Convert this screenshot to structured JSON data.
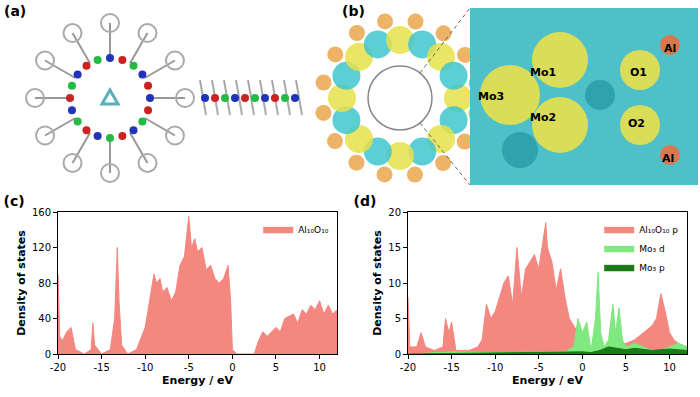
{
  "panels": [
    {
      "label": "(a)"
    },
    {
      "label": "(b)",
      "atom_labels": [
        "Mo1",
        "Mo2",
        "Mo3",
        "O1",
        "O2",
        "Al",
        "Al"
      ]
    }
  ],
  "chart_data": [
    {
      "type": "area",
      "title": "(c)",
      "x_label": "Energy / eV",
      "y_label": "Density of states",
      "xlim": [
        -20,
        12
      ],
      "xticks": [
        -20,
        -15,
        -10,
        -5,
        0,
        5,
        10
      ],
      "ylim": [
        0,
        160
      ],
      "yticks": [
        0,
        40,
        80,
        120,
        160
      ],
      "legend": "upper right",
      "series": [
        {
          "name": "Al₁₀O₁₀",
          "color": "#f4877f",
          "x": [
            -20,
            -19.8,
            -19.5,
            -19,
            -18.5,
            -18,
            -17,
            -16.2,
            -16,
            -15.8,
            -15,
            -14,
            -13.5,
            -13.2,
            -13,
            -12.7,
            -12,
            -11,
            -10,
            -9.5,
            -9,
            -8.7,
            -8.3,
            -8,
            -7.5,
            -7,
            -6.5,
            -6,
            -5.5,
            -5,
            -4.7,
            -4.3,
            -4,
            -3.5,
            -3,
            -2.5,
            -2,
            -1.5,
            -1,
            -0.5,
            -0.2,
            0,
            0.5,
            2.5,
            3,
            3.5,
            4,
            5,
            5.5,
            6,
            7,
            7.5,
            8,
            8.5,
            9,
            9.5,
            10,
            10.5,
            11,
            11.5,
            12
          ],
          "values": [
            90,
            20,
            15,
            25,
            30,
            5,
            0,
            5,
            35,
            10,
            0,
            5,
            40,
            120,
            60,
            10,
            0,
            5,
            30,
            60,
            90,
            80,
            85,
            70,
            75,
            60,
            70,
            100,
            110,
            155,
            120,
            130,
            115,
            120,
            95,
            100,
            85,
            80,
            85,
            100,
            60,
            5,
            0,
            0,
            15,
            25,
            20,
            30,
            25,
            40,
            45,
            35,
            50,
            45,
            55,
            50,
            60,
            45,
            55,
            45,
            50
          ]
        }
      ]
    },
    {
      "type": "area",
      "title": "(d)",
      "x_label": "Energy / eV",
      "y_label": "Density of states",
      "xlim": [
        -20,
        12
      ],
      "xticks": [
        -20,
        -15,
        -10,
        -5,
        0,
        5,
        10
      ],
      "ylim": [
        0,
        20
      ],
      "yticks": [
        0,
        5,
        10,
        15,
        20
      ],
      "legend": "upper right",
      "series": [
        {
          "name": "Al₁₀O₁₀ p",
          "color": "#f4877f",
          "x": [
            -20,
            -19.8,
            -19,
            -18.5,
            -18,
            -17,
            -16,
            -15.7,
            -15.3,
            -15,
            -14.5,
            -13,
            -12,
            -11.5,
            -11,
            -10.5,
            -10,
            -9,
            -8.5,
            -8,
            -7.5,
            -7,
            -6.5,
            -6,
            -5.5,
            -5,
            -4.5,
            -4.2,
            -4,
            -3.5,
            -3,
            -2.5,
            -2,
            -1.5,
            -1,
            -0.5,
            0,
            0.5,
            2,
            3,
            4,
            5,
            6,
            7,
            8,
            8.5,
            9,
            9.5,
            10,
            10.5,
            11,
            12
          ],
          "values": [
            8,
            1,
            1,
            3,
            1,
            0.5,
            1,
            5,
            3,
            4.5,
            0.5,
            0.5,
            1,
            2,
            7,
            5,
            6,
            10,
            11,
            7,
            15,
            8,
            12,
            13,
            14,
            12,
            16,
            18.5,
            15,
            13,
            9,
            12,
            8,
            5,
            4,
            3,
            1,
            0.3,
            0.3,
            0.5,
            1,
            1.5,
            2,
            3,
            4,
            5,
            8.5,
            6,
            3,
            2,
            1.5,
            1
          ]
        },
        {
          "name": "Mo₃ d",
          "color": "#7fe87f",
          "x": [
            -20,
            -15,
            -10,
            -5,
            -2,
            -1,
            -0.5,
            0,
            0.5,
            1,
            1.5,
            1.8,
            2.1,
            2.5,
            3,
            3.5,
            3.8,
            4.2,
            4.6,
            5,
            6,
            7,
            8,
            9,
            10,
            11,
            12
          ],
          "values": [
            0,
            0.3,
            0.2,
            0.3,
            0.3,
            1,
            5,
            3,
            4.5,
            0.5,
            5,
            11.5,
            3,
            1,
            2,
            7,
            3,
            6.5,
            2,
            1,
            1.5,
            1,
            0.5,
            0.5,
            1,
            1.5,
            1
          ]
        },
        {
          "name": "Mo₃ p",
          "color": "#1a7a1a",
          "x": [
            -20,
            -10,
            -1,
            0,
            1,
            2,
            3,
            4,
            5,
            6,
            8,
            10,
            12
          ],
          "values": [
            0,
            0.1,
            0.2,
            0.3,
            0.2,
            0.5,
            1,
            0.8,
            0.6,
            0.8,
            0.5,
            0.7,
            0.5
          ]
        }
      ]
    }
  ]
}
